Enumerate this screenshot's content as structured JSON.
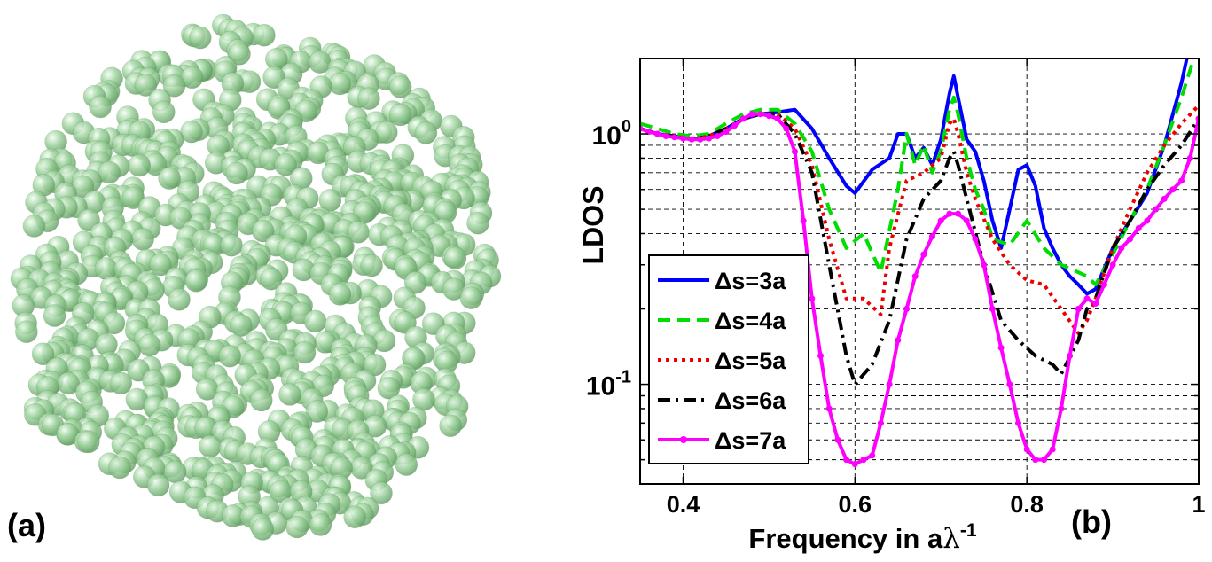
{
  "panels": {
    "a_label": "(a)",
    "b_label": "(b)"
  },
  "colors": {
    "sphere": "#9fd39f",
    "sphere_dark": "#5f9a5f",
    "sphere_highlight": "#f4fff4"
  },
  "chart_data": {
    "type": "line",
    "xlabel_prefix": "Frequency in a",
    "xlabel_lambda": "λ",
    "xlabel_exp": "-1",
    "ylabel": "LDOS",
    "xlim": [
      0.35,
      1.0
    ],
    "ylim": [
      0.04,
      2.0
    ],
    "yscale": "log",
    "grid": true,
    "legend_position": "bottom-left",
    "xticks": [
      0.4,
      0.6,
      0.8,
      1.0
    ],
    "xtick_labels": [
      "0.4",
      "0.6",
      "0.8",
      "1"
    ],
    "yticks": [
      {
        "value": 1,
        "base": "10",
        "exp": "0"
      },
      {
        "value": 0.1,
        "base": "10",
        "exp": "-1"
      }
    ],
    "series": [
      {
        "name": "Δs=3a",
        "color": "#0000ff",
        "dash": "solid",
        "markers": false,
        "x": [
          0.35,
          0.37,
          0.39,
          0.41,
          0.43,
          0.45,
          0.47,
          0.49,
          0.51,
          0.53,
          0.55,
          0.57,
          0.59,
          0.6,
          0.62,
          0.64,
          0.65,
          0.66,
          0.67,
          0.68,
          0.69,
          0.7,
          0.71,
          0.715,
          0.72,
          0.73,
          0.74,
          0.75,
          0.76,
          0.77,
          0.78,
          0.79,
          0.8,
          0.81,
          0.82,
          0.83,
          0.84,
          0.85,
          0.86,
          0.87,
          0.88,
          0.9,
          0.92,
          0.94,
          0.96,
          0.98,
          0.99,
          1.0
        ],
        "y": [
          1.05,
          1.0,
          0.98,
          0.95,
          0.98,
          1.05,
          1.15,
          1.2,
          1.22,
          1.25,
          1.05,
          0.8,
          0.62,
          0.58,
          0.72,
          0.8,
          1.0,
          1.0,
          0.8,
          0.88,
          0.75,
          0.95,
          1.45,
          1.7,
          1.4,
          0.95,
          0.85,
          0.65,
          0.45,
          0.35,
          0.5,
          0.72,
          0.75,
          0.62,
          0.42,
          0.35,
          0.3,
          0.27,
          0.25,
          0.23,
          0.24,
          0.35,
          0.45,
          0.58,
          0.9,
          1.6,
          2.3,
          2.4
        ]
      },
      {
        "name": "Δs=4a",
        "color": "#00dd00",
        "dash": "dash",
        "markers": false,
        "x": [
          0.35,
          0.37,
          0.39,
          0.41,
          0.43,
          0.45,
          0.47,
          0.49,
          0.51,
          0.53,
          0.55,
          0.57,
          0.59,
          0.61,
          0.63,
          0.65,
          0.66,
          0.67,
          0.68,
          0.69,
          0.7,
          0.71,
          0.715,
          0.72,
          0.73,
          0.74,
          0.75,
          0.76,
          0.78,
          0.8,
          0.82,
          0.84,
          0.86,
          0.87,
          0.88,
          0.9,
          0.92,
          0.94,
          0.96,
          0.98,
          1.0
        ],
        "y": [
          1.1,
          1.05,
          1.0,
          0.98,
          1.0,
          1.1,
          1.2,
          1.25,
          1.25,
          1.1,
          0.85,
          0.5,
          0.35,
          0.4,
          0.28,
          0.6,
          1.0,
          0.75,
          0.9,
          0.7,
          0.85,
          1.25,
          1.4,
          1.2,
          0.8,
          0.6,
          0.5,
          0.38,
          0.36,
          0.45,
          0.35,
          0.3,
          0.28,
          0.27,
          0.25,
          0.33,
          0.45,
          0.6,
          0.9,
          1.4,
          2.3
        ]
      },
      {
        "name": "Δs=5a",
        "color": "#ee0000",
        "dash": "dot",
        "markers": false,
        "x": [
          0.35,
          0.37,
          0.39,
          0.41,
          0.43,
          0.45,
          0.47,
          0.49,
          0.51,
          0.53,
          0.55,
          0.57,
          0.59,
          0.61,
          0.63,
          0.64,
          0.66,
          0.68,
          0.7,
          0.71,
          0.715,
          0.72,
          0.73,
          0.74,
          0.76,
          0.78,
          0.8,
          0.82,
          0.84,
          0.86,
          0.87,
          0.88,
          0.9,
          0.92,
          0.94,
          0.96,
          0.98,
          1.0
        ],
        "y": [
          1.05,
          1.0,
          0.98,
          0.95,
          0.98,
          1.05,
          1.15,
          1.2,
          1.2,
          1.05,
          0.75,
          0.38,
          0.22,
          0.22,
          0.19,
          0.35,
          0.65,
          0.7,
          0.8,
          1.1,
          1.15,
          1.0,
          0.7,
          0.55,
          0.38,
          0.3,
          0.26,
          0.25,
          0.2,
          0.16,
          0.18,
          0.22,
          0.35,
          0.5,
          0.7,
          0.9,
          1.1,
          1.3
        ]
      },
      {
        "name": "Δs=6a",
        "color": "#000000",
        "dash": "dashdot",
        "markers": false,
        "x": [
          0.35,
          0.37,
          0.39,
          0.41,
          0.43,
          0.45,
          0.47,
          0.49,
          0.51,
          0.53,
          0.55,
          0.57,
          0.59,
          0.6,
          0.62,
          0.64,
          0.66,
          0.68,
          0.7,
          0.71,
          0.715,
          0.72,
          0.73,
          0.75,
          0.77,
          0.79,
          0.81,
          0.83,
          0.84,
          0.86,
          0.87,
          0.88,
          0.9,
          0.92,
          0.94,
          0.96,
          0.98,
          1.0
        ],
        "y": [
          1.05,
          1.0,
          0.98,
          0.95,
          0.98,
          1.05,
          1.15,
          1.2,
          1.2,
          1.0,
          0.7,
          0.3,
          0.13,
          0.1,
          0.12,
          0.18,
          0.38,
          0.55,
          0.65,
          0.8,
          0.85,
          0.75,
          0.55,
          0.3,
          0.18,
          0.15,
          0.13,
          0.12,
          0.11,
          0.15,
          0.2,
          0.22,
          0.35,
          0.45,
          0.6,
          0.75,
          0.9,
          1.15
        ]
      },
      {
        "name": "Δs=7a",
        "color": "#ff00ff",
        "dash": "solid",
        "markers": true,
        "x": [
          0.35,
          0.36,
          0.37,
          0.38,
          0.39,
          0.4,
          0.41,
          0.42,
          0.43,
          0.44,
          0.45,
          0.46,
          0.47,
          0.48,
          0.49,
          0.5,
          0.51,
          0.52,
          0.53,
          0.54,
          0.55,
          0.56,
          0.57,
          0.58,
          0.59,
          0.6,
          0.61,
          0.62,
          0.63,
          0.64,
          0.65,
          0.66,
          0.67,
          0.68,
          0.69,
          0.7,
          0.71,
          0.72,
          0.73,
          0.74,
          0.75,
          0.76,
          0.77,
          0.78,
          0.79,
          0.8,
          0.81,
          0.82,
          0.83,
          0.84,
          0.85,
          0.86,
          0.87,
          0.88,
          0.89,
          0.9,
          0.91,
          0.92,
          0.93,
          0.94,
          0.95,
          0.96,
          0.97,
          0.98,
          0.99,
          1.0
        ],
        "y": [
          1.05,
          1.02,
          1.0,
          0.98,
          0.97,
          0.96,
          0.95,
          0.95,
          0.96,
          0.98,
          1.02,
          1.08,
          1.15,
          1.2,
          1.2,
          1.18,
          1.15,
          1.05,
          0.85,
          0.45,
          0.22,
          0.13,
          0.08,
          0.06,
          0.05,
          0.048,
          0.05,
          0.052,
          0.07,
          0.1,
          0.15,
          0.2,
          0.27,
          0.33,
          0.39,
          0.45,
          0.48,
          0.48,
          0.45,
          0.38,
          0.3,
          0.2,
          0.14,
          0.1,
          0.07,
          0.055,
          0.05,
          0.05,
          0.055,
          0.08,
          0.13,
          0.2,
          0.22,
          0.21,
          0.25,
          0.3,
          0.35,
          0.38,
          0.42,
          0.45,
          0.5,
          0.55,
          0.6,
          0.65,
          0.8,
          1.15
        ]
      }
    ]
  }
}
